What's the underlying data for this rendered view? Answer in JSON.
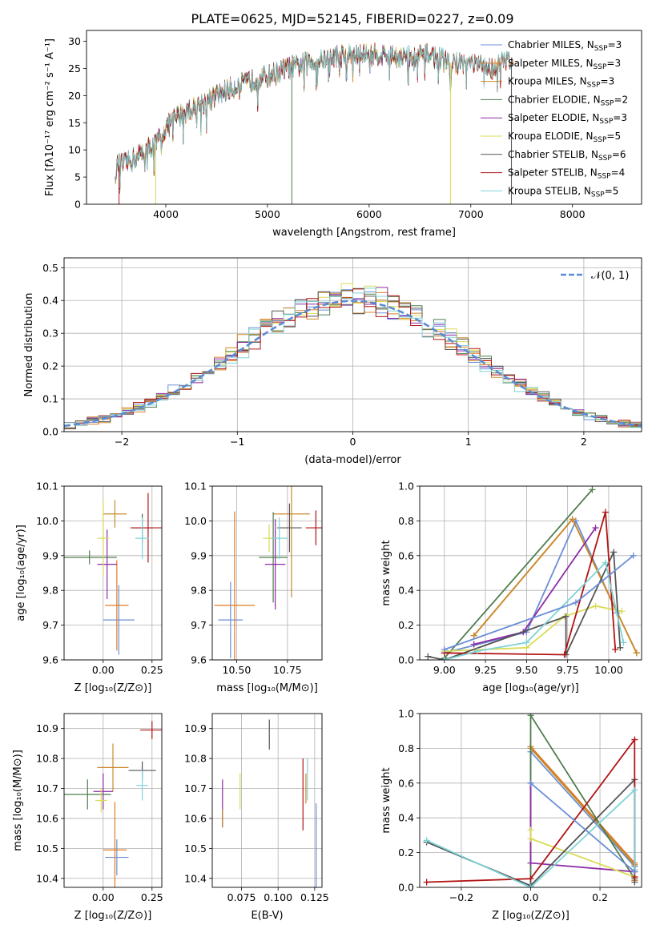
{
  "colors": [
    "#6b8fd6",
    "#e07b25",
    "#c98a2b",
    "#4f7d4f",
    "#8e2ba5",
    "#d9dc55",
    "#555555",
    "#b11414",
    "#7fd3d6"
  ],
  "chart_data": [
    {
      "id": "spectrum",
      "type": "line",
      "title": "PLATE=0625, MJD=52145, FIBERID=0227, z=0.09",
      "xlabel": "wavelength [Angstrom, rest frame]",
      "ylabel": "Flux [fλ10⁻¹⁷ erg cm⁻² s⁻¹ A⁻¹]",
      "xlim": [
        3220,
        8680
      ],
      "ylim": [
        0,
        32
      ],
      "xticks": [
        4000,
        5000,
        6000,
        7000,
        8000
      ],
      "yticks": [
        0,
        5,
        10,
        15,
        20,
        25,
        30
      ],
      "grid": false,
      "legend": "upper-right",
      "continuum": {
        "x": [
          3500,
          3600,
          3700,
          3800,
          3900,
          4000,
          4100,
          4200,
          4300,
          4400,
          4600,
          4800,
          5000,
          5200,
          5400,
          5600,
          5800,
          6000,
          6200,
          6400,
          6600,
          6800,
          7000,
          7200,
          7400
        ],
        "y": [
          7,
          7.5,
          8.5,
          10,
          11,
          14,
          16,
          17,
          18,
          19,
          21,
          22.5,
          23.5,
          25,
          26,
          27,
          27.5,
          27.5,
          27.5,
          27,
          27.5,
          26,
          26,
          25,
          27
        ]
      },
      "series": [
        {
          "name": "Chabrier MILES, Nₛₛₚ=3",
          "label": "Chabrier MILES, N",
          "sub": "SSP",
          "n": "=3",
          "xmax": 7420
        },
        {
          "name": "Salpeter MILES, Nₛₛₚ=3",
          "label": "Salpeter MILES, N",
          "sub": "SSP",
          "n": "=3",
          "xmax": 7420
        },
        {
          "name": "Kroupa MILES, Nₛₛₚ=3",
          "label": "Kroupa MILES, N",
          "sub": "SSP",
          "n": "=3",
          "xmax": 7420
        },
        {
          "name": "Chabrier ELODIE, Nₛₛₚ=2",
          "label": "Chabrier ELODIE, N",
          "sub": "SSP",
          "n": "=2",
          "xmax": 6800
        },
        {
          "name": "Salpeter ELODIE, Nₛₛₚ=3",
          "label": "Salpeter ELODIE, N",
          "sub": "SSP",
          "n": "=3",
          "xmax": 6800
        },
        {
          "name": "Kroupa ELODIE, Nₛₛₚ=5",
          "label": "Kroupa ELODIE, N",
          "sub": "SSP",
          "n": "=5",
          "xmax": 6800
        },
        {
          "name": "Chabrier STELIB, Nₛₛₚ=6",
          "label": "Chabrier STELIB, N",
          "sub": "SSP",
          "n": "=6",
          "xmax": 7400
        },
        {
          "name": "Salpeter STELIB, Nₛₛₚ=4",
          "label": "Salpeter STELIB, N",
          "sub": "SSP",
          "n": "=4",
          "xmax": 7400
        },
        {
          "name": "Kroupa STELIB, Nₛₛₚ=5",
          "label": "Kroupa STELIB, N",
          "sub": "SSP",
          "n": "=5",
          "xmax": 7400
        }
      ]
    },
    {
      "id": "residuals",
      "type": "histogram",
      "xlabel": "(data-model)/error",
      "ylabel": "Normed distribution",
      "xlim": [
        -2.5,
        2.5
      ],
      "ylim": [
        0,
        0.53
      ],
      "xticks": [
        -2,
        -1,
        0,
        1,
        2
      ],
      "yticks": [
        0.0,
        0.1,
        0.2,
        0.3,
        0.4,
        0.5
      ],
      "bin_width": 0.1,
      "grid": true,
      "legend": "upper-right",
      "reference_curve": {
        "name": "N(0,1)",
        "label": "𝒩(0, 1)",
        "mean": 0,
        "sigma": 1
      }
    },
    {
      "id": "age-vs-z",
      "type": "errorbar",
      "xlabel": "Z [log₁₀(Z/Z⊙)]",
      "ylabel": "age [log₁₀(age/yr)]",
      "xlim": [
        -0.2,
        0.3
      ],
      "ylim": [
        9.6,
        10.1
      ],
      "xticks": [
        0.0,
        0.25
      ],
      "yticks": [
        9.6,
        9.7,
        9.8,
        9.9,
        10.0,
        10.1
      ],
      "grid": true,
      "points": [
        {
          "x": 0.08,
          "xerr": 0.08,
          "y": 9.715,
          "yerr": 0.1
        },
        {
          "x": 0.07,
          "xerr": 0.06,
          "y": 9.757,
          "yerr": 0.13
        },
        {
          "x": 0.06,
          "xerr": 0.06,
          "y": 10.02,
          "yerr": 0.04
        },
        {
          "x": -0.07,
          "xerr": 0.14,
          "y": 9.895,
          "yerr": 0.02
        },
        {
          "x": 0.02,
          "xerr": 0.05,
          "y": 9.875,
          "yerr": 0.1
        },
        {
          "x": 0.0,
          "xerr": 0.03,
          "y": 9.95,
          "yerr": 0.11
        },
        {
          "x": 0.2,
          "xerr": 0.05,
          "y": 9.98,
          "yerr": 0.04
        },
        {
          "x": 0.23,
          "xerr": 0.09,
          "y": 9.98,
          "yerr": 0.1
        },
        {
          "x": 0.2,
          "xerr": 0.035,
          "y": 9.95,
          "yerr": 0.06
        }
      ]
    },
    {
      "id": "age-vs-mass",
      "type": "errorbar",
      "xlabel": "mass [log₁₀(M/M⊙)]",
      "ylabel": "",
      "xlim": [
        10.38,
        10.92
      ],
      "ylim": [
        9.6,
        10.1
      ],
      "xticks": [
        10.5,
        10.75
      ],
      "yticks": [
        9.6,
        9.7,
        9.8,
        9.9,
        10.0,
        10.1
      ],
      "grid": true,
      "points": [
        {
          "x": 10.47,
          "xerr": 0.06,
          "y": 9.715,
          "yerr": 0.11
        },
        {
          "x": 10.49,
          "xerr": 0.1,
          "y": 9.757,
          "yerr": 0.27
        },
        {
          "x": 10.77,
          "xerr": 0.09,
          "y": 10.02,
          "yerr": 0.24
        },
        {
          "x": 10.68,
          "xerr": 0.07,
          "y": 9.895,
          "yerr": 0.13
        },
        {
          "x": 10.69,
          "xerr": 0.05,
          "y": 9.875,
          "yerr": 0.13
        },
        {
          "x": 10.66,
          "xerr": 0.03,
          "y": 9.95,
          "yerr": 0.04
        },
        {
          "x": 10.76,
          "xerr": 0.06,
          "y": 9.98,
          "yerr": 0.07
        },
        {
          "x": 10.89,
          "xerr": 0.05,
          "y": 9.98,
          "yerr": 0.05
        },
        {
          "x": 10.71,
          "xerr": 0.04,
          "y": 9.95,
          "yerr": 0.06
        }
      ]
    },
    {
      "id": "weight-vs-age",
      "type": "line",
      "xlabel": "age [log₁₀(age/yr)]",
      "ylabel": "mass weight",
      "xlim": [
        8.85,
        10.2
      ],
      "ylim": [
        0,
        1.0
      ],
      "xticks": [
        9.0,
        9.25,
        9.5,
        9.75,
        10.0
      ],
      "yticks": [
        0.0,
        0.2,
        0.4,
        0.6,
        0.8,
        1.0
      ],
      "grid": true,
      "series": [
        {
          "x": [
            9.0,
            9.5,
            9.8,
            10.05
          ],
          "y": [
            0.04,
            0.16,
            0.8,
            0.27
          ]
        },
        {
          "x": [
            9.18,
            9.78,
            10.17
          ],
          "y": [
            0.14,
            0.81,
            0.04
          ]
        },
        {
          "x": [
            9.18,
            9.78,
            10.17
          ],
          "y": [
            0.14,
            0.81,
            0.04
          ]
        },
        {
          "x": [
            9.0,
            9.9
          ],
          "y": [
            0.01,
            0.98
          ]
        },
        {
          "x": [
            9.18,
            9.48,
            9.92
          ],
          "y": [
            0.09,
            0.16,
            0.76
          ]
        },
        {
          "x": [
            9.0,
            9.5,
            9.73,
            9.92,
            10.08
          ],
          "y": [
            0.05,
            0.07,
            0.25,
            0.31,
            0.28
          ]
        },
        {
          "x": [
            8.9,
            9.0,
            9.74,
            9.74,
            10.03,
            10.07
          ],
          "y": [
            0.02,
            0.0,
            0.25,
            0.03,
            0.62,
            0.07
          ]
        },
        {
          "x": [
            9.0,
            9.73,
            9.98,
            10.04
          ],
          "y": [
            0.04,
            0.03,
            0.85,
            0.06
          ]
        },
        {
          "x": [
            9.0,
            9.2,
            9.5,
            9.98,
            10.09
          ],
          "y": [
            0.0,
            0.05,
            0.1,
            0.56,
            0.1
          ]
        },
        {
          "x": [
            9.0,
            9.8,
            10.15
          ],
          "y": [
            0.06,
            0.33,
            0.6
          ]
        }
      ]
    },
    {
      "id": "mass-vs-z",
      "type": "errorbar",
      "xlabel": "Z [log₁₀(Z/Z⊙)]",
      "ylabel": "mass [log₁₀(M/M⊙)]",
      "xlim": [
        -0.2,
        0.3
      ],
      "ylim": [
        10.37,
        10.95
      ],
      "xticks": [
        0.0,
        0.25
      ],
      "yticks": [
        10.4,
        10.5,
        10.6,
        10.7,
        10.8,
        10.9
      ],
      "grid": true,
      "points": [
        {
          "x": 0.07,
          "xerr": 0.06,
          "y": 10.47,
          "yerr": 0.06
        },
        {
          "x": 0.06,
          "xerr": 0.06,
          "y": 10.495,
          "yerr": 0.16
        },
        {
          "x": 0.05,
          "xerr": 0.08,
          "y": 10.77,
          "yerr": 0.08
        },
        {
          "x": -0.08,
          "xerr": 0.12,
          "y": 10.68,
          "yerr": 0.05
        },
        {
          "x": 0.0,
          "xerr": 0.05,
          "y": 10.69,
          "yerr": 0.06
        },
        {
          "x": -0.01,
          "xerr": 0.03,
          "y": 10.66,
          "yerr": 0.04
        },
        {
          "x": 0.2,
          "xerr": 0.07,
          "y": 10.76,
          "yerr": 0.03
        },
        {
          "x": 0.25,
          "xerr": 0.06,
          "y": 10.895,
          "yerr": 0.03
        },
        {
          "x": 0.2,
          "xerr": 0.03,
          "y": 10.71,
          "yerr": 0.05
        }
      ]
    },
    {
      "id": "mass-vs-ebv",
      "type": "errorbar",
      "xlabel": "E(B-V)",
      "ylabel": "",
      "xlim": [
        0.055,
        0.13
      ],
      "ylim": [
        10.37,
        10.95
      ],
      "xticks": [
        0.075,
        0.1,
        0.125
      ],
      "yticks": [
        10.4,
        10.5,
        10.6,
        10.7,
        10.8,
        10.9
      ],
      "grid": true,
      "points": [
        {
          "x": 0.062,
          "y": 10.65,
          "yerr": 0.08
        },
        {
          "x": 0.074,
          "y": 10.69,
          "yerr": 0.06
        },
        {
          "x": 0.094,
          "y": 10.88,
          "yerr": 0.05
        },
        {
          "x": 0.117,
          "y": 10.68,
          "yerr": 0.12
        },
        {
          "x": 0.12,
          "y": 10.73,
          "yerr": 0.07
        },
        {
          "x": 0.126,
          "y": 10.5,
          "yerr": 0.15
        },
        {
          "x": 0.119,
          "y": 10.7,
          "yerr": 0.05
        },
        {
          "x": 0.062,
          "y": 10.6,
          "yerr": 0.03
        }
      ]
    },
    {
      "id": "weight-vs-z",
      "type": "line",
      "xlabel": "Z [log₁₀(Z/Z⊙)]",
      "ylabel": "mass weight",
      "xlim": [
        -0.32,
        0.32
      ],
      "ylim": [
        0,
        1.0
      ],
      "xticks": [
        -0.2,
        0.0,
        0.2
      ],
      "yticks": [
        0.0,
        0.2,
        0.4,
        0.6,
        0.8,
        1.0
      ],
      "grid": true,
      "series": [
        {
          "x": [
            0.0,
            0.0,
            0.3,
            0.3
          ],
          "y": [
            0.01,
            0.78,
            0.12,
            0.09
          ]
        },
        {
          "x": [
            0.0,
            0.3,
            0.3
          ],
          "y": [
            0.81,
            0.14,
            0.04
          ]
        },
        {
          "x": [
            0.0,
            0.3
          ],
          "y": [
            0.8,
            0.13
          ]
        },
        {
          "x": [
            0.0,
            0.0,
            0.3
          ],
          "y": [
            0.0,
            0.99,
            0.05
          ]
        },
        {
          "x": [
            0.0,
            0.0,
            0.3
          ],
          "y": [
            0.6,
            0.14,
            0.09
          ]
        },
        {
          "x": [
            0.0,
            0.0,
            0.3
          ],
          "y": [
            0.33,
            0.28,
            0.06
          ]
        },
        {
          "x": [
            -0.3,
            0.0,
            0.3,
            0.3
          ],
          "y": [
            0.26,
            0.01,
            0.62,
            0.03
          ]
        },
        {
          "x": [
            -0.3,
            0.0,
            0.3,
            0.3
          ],
          "y": [
            0.03,
            0.05,
            0.85,
            0.06
          ]
        },
        {
          "x": [
            -0.3,
            0.0,
            0.3,
            0.3
          ],
          "y": [
            0.27,
            0.0,
            0.56,
            0.1
          ]
        },
        {
          "x": [
            0.0,
            0.3
          ],
          "y": [
            0.6,
            0.09
          ]
        }
      ]
    }
  ]
}
